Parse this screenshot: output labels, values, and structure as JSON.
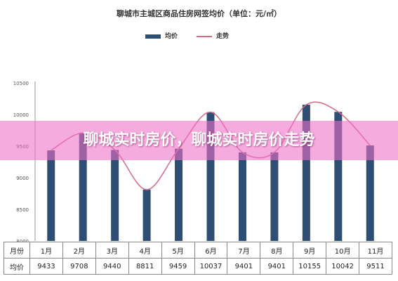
{
  "banner": {
    "text": "聊城实时房价，聊城实时房价走势"
  },
  "chart_data": {
    "type": "bar",
    "title": "聊城市主城区商品住房网签均价（单位：元/㎡）",
    "categories": [
      "1月",
      "2月",
      "3月",
      "4月",
      "5月",
      "6月",
      "7月",
      "8月",
      "9月",
      "10月",
      "11月"
    ],
    "series": [
      {
        "name": "均价",
        "type": "bar",
        "color": "#2e4f73",
        "values": [
          9433,
          9708,
          9440,
          8811,
          9459,
          10037,
          9401,
          9401,
          10155,
          10042,
          9511
        ]
      },
      {
        "name": "走势",
        "type": "line",
        "color": "#d46a85",
        "values": [
          9433,
          9708,
          9440,
          8811,
          9459,
          10037,
          9401,
          9401,
          10155,
          10042,
          9511
        ]
      }
    ],
    "ylim": [
      8000,
      10500
    ],
    "yticks": [
      8000,
      8500,
      9000,
      9500,
      10000,
      10500
    ],
    "xlabel": "",
    "ylabel": "",
    "legend": "top",
    "grid": false,
    "table": {
      "row_labels": [
        "月份",
        "均价"
      ],
      "months": [
        "1月",
        "2月",
        "3月",
        "4月",
        "5月",
        "6月",
        "7月",
        "8月",
        "9月",
        "10月",
        "11月"
      ],
      "prices": [
        "9433",
        "9708",
        "9440",
        "8811",
        "9459",
        "10037",
        "9401",
        "9401",
        "10155",
        "10042",
        "9511"
      ]
    }
  }
}
